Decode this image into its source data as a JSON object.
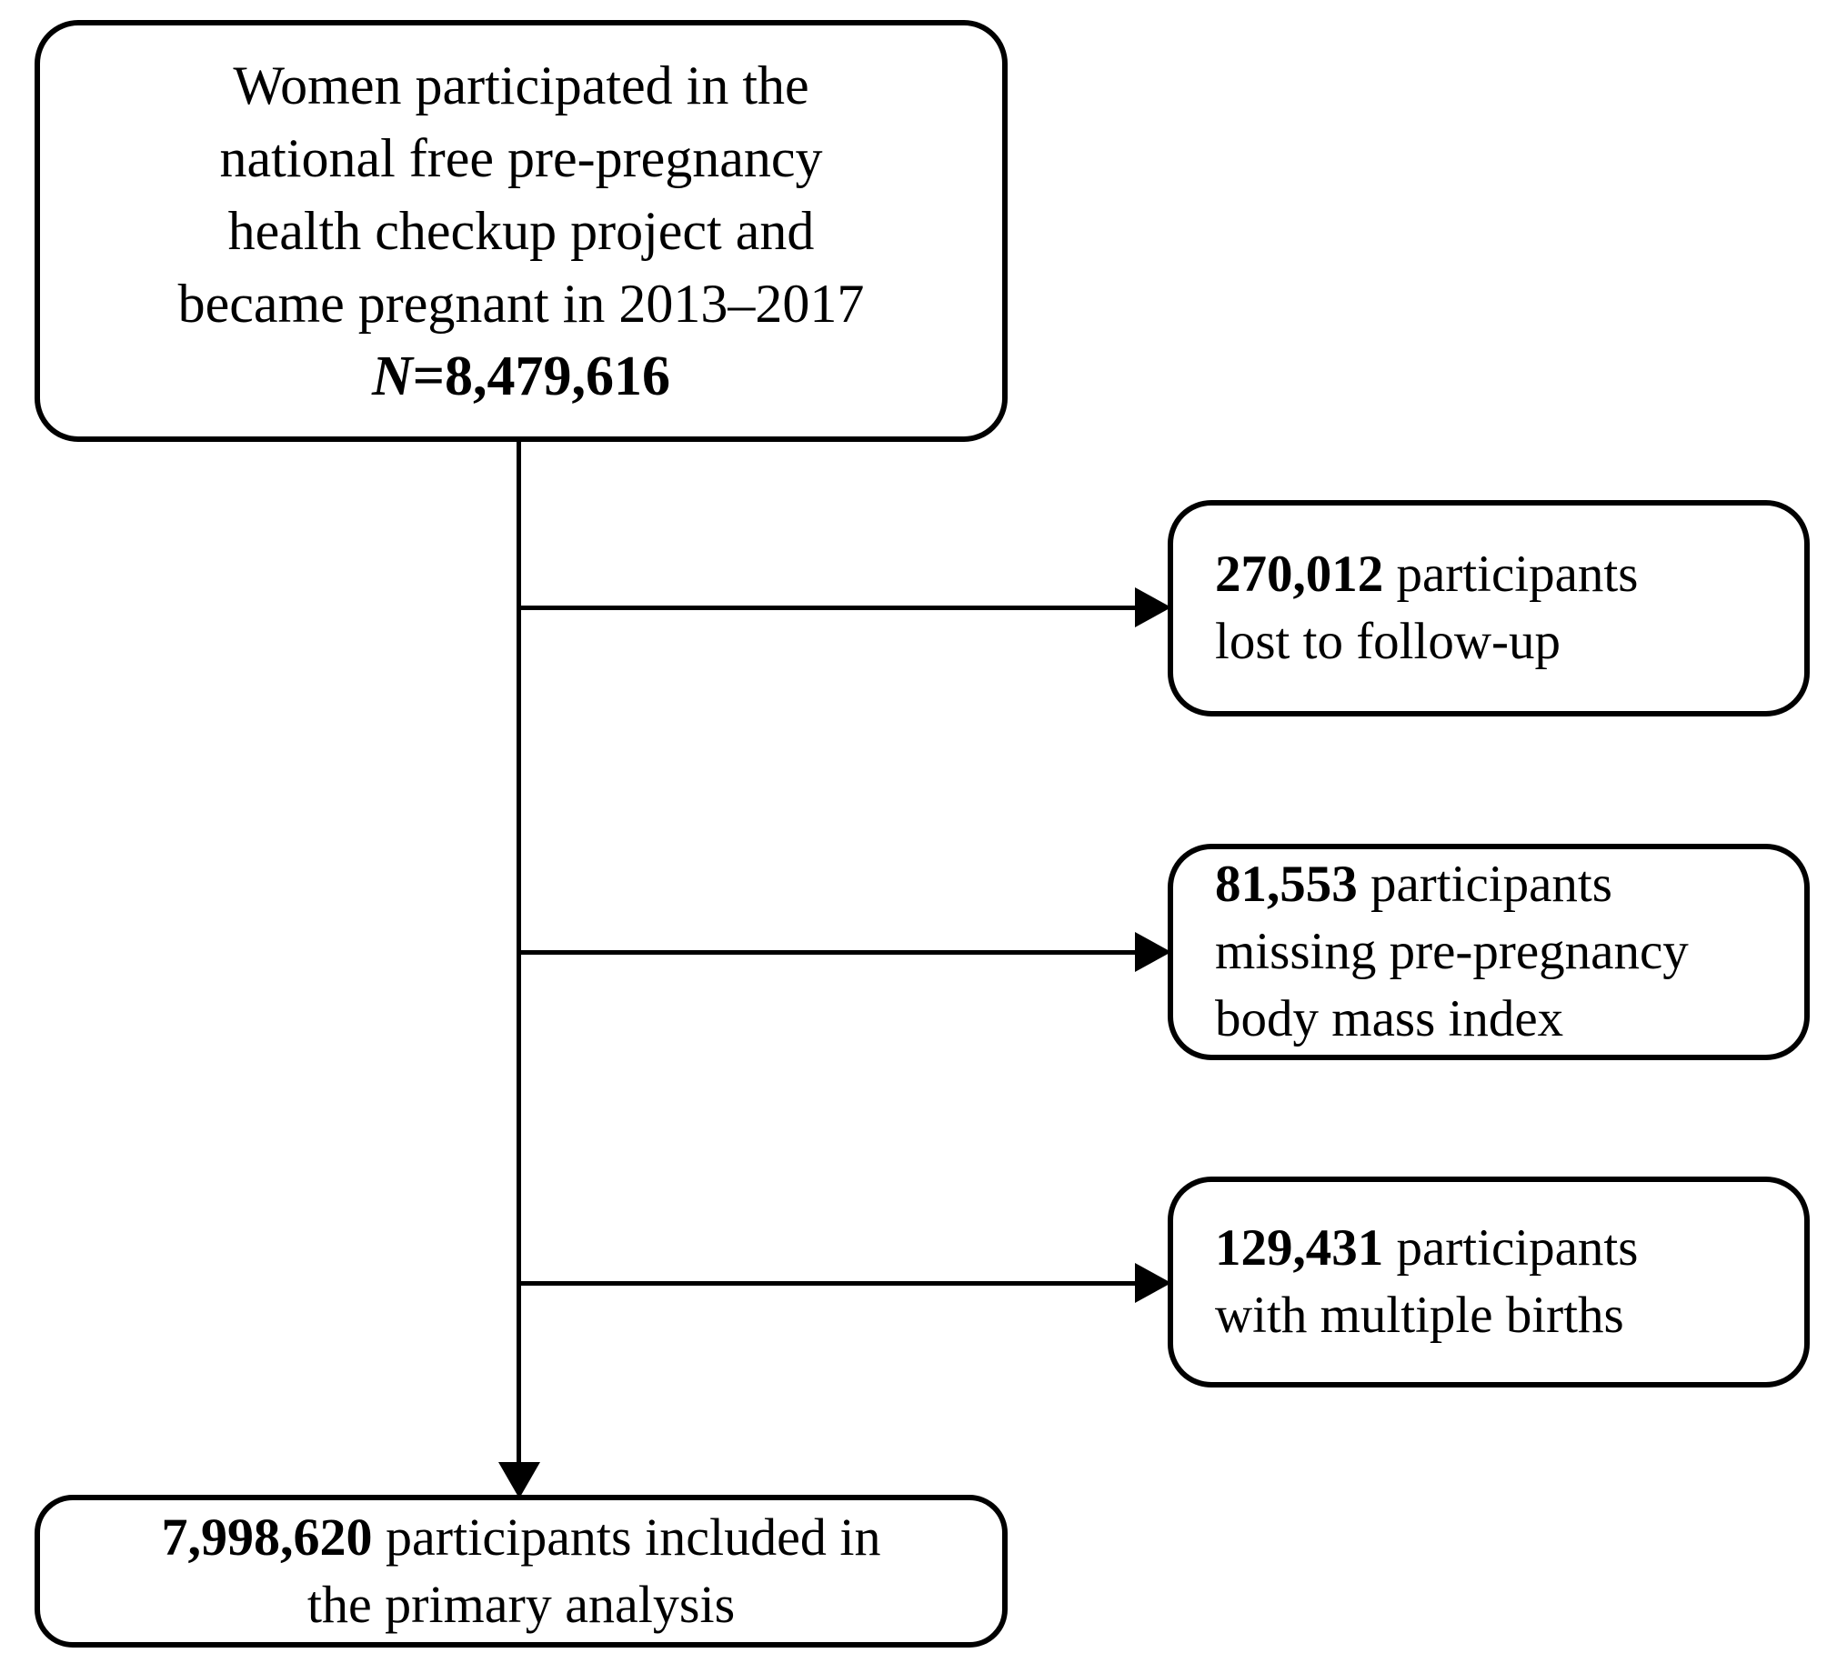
{
  "diagram": {
    "top_box": {
      "line1": "Women participated in the",
      "line2": "national free pre-pregnancy",
      "line3": "health checkup project and",
      "line4": "became pregnant in 2013–2017",
      "n_label": "N",
      "n_value": "=8,479,616"
    },
    "exclusions": [
      {
        "count": "270,012",
        "after_count": " participants",
        "line2": "lost to follow-up"
      },
      {
        "count": "81,553",
        "after_count": " participants",
        "line2": "missing pre-pregnancy",
        "line3": "body mass index"
      },
      {
        "count": "129,431",
        "after_count": " participants",
        "line2": "with multiple births"
      }
    ],
    "final_box": {
      "count": "7,998,620",
      "after_count": " participants included in",
      "line2": "the primary analysis"
    },
    "colors": {
      "line": "#000000",
      "background": "#ffffff",
      "text": "#000000"
    }
  }
}
